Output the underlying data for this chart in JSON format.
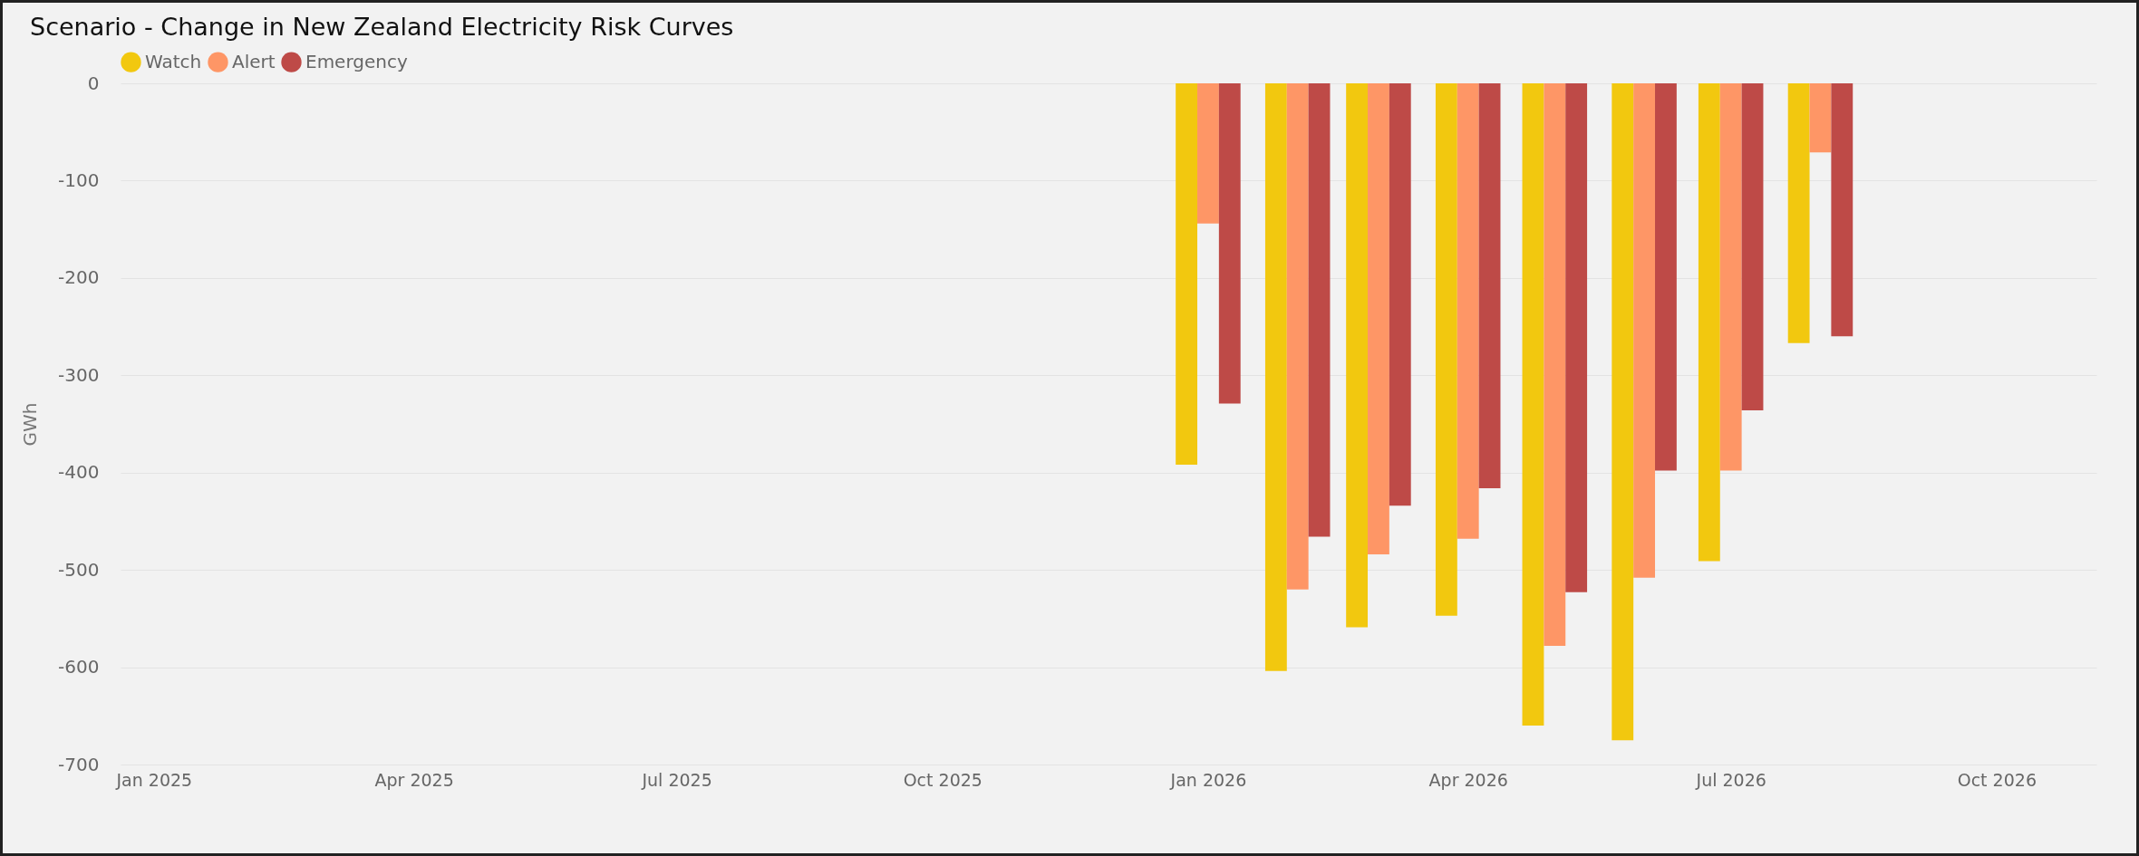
{
  "chart_data": {
    "type": "bar",
    "title": "Scenario - Change in New Zealand Electricity Risk Curves",
    "ylabel": "GWh",
    "x": [
      "2026-01",
      "2026-02",
      "2026-03",
      "2026-04",
      "2026-05",
      "2026-06",
      "2026-07",
      "2026-08"
    ],
    "series": [
      {
        "name": "Watch",
        "color": "#f2c80f",
        "values": [
          -392,
          -604,
          -559,
          -547,
          -660,
          -675,
          -491,
          -267
        ]
      },
      {
        "name": "Alert",
        "color": "#fe9666",
        "values": [
          -144,
          -520,
          -484,
          -468,
          -578,
          -508,
          -398,
          -71
        ]
      },
      {
        "name": "Emergency",
        "color": "#be4a47",
        "values": [
          -329,
          -466,
          -434,
          -416,
          -523,
          -398,
          -336,
          -260
        ]
      }
    ],
    "xlim": [
      "2024-12-22",
      "2026-11-03"
    ],
    "xticks": [
      {
        "value": "2025-01",
        "label": "Jan 2025"
      },
      {
        "value": "2025-04",
        "label": "Apr 2025"
      },
      {
        "value": "2025-07",
        "label": "Jul 2025"
      },
      {
        "value": "2025-10",
        "label": "Oct 2025"
      },
      {
        "value": "2026-01",
        "label": "Jan 2026"
      },
      {
        "value": "2026-04",
        "label": "Apr 2026"
      },
      {
        "value": "2026-07",
        "label": "Jul 2026"
      },
      {
        "value": "2026-10",
        "label": "Oct 2026"
      }
    ],
    "ylim": [
      -700,
      0
    ],
    "yticks": [
      -700,
      -600,
      -500,
      -400,
      -300,
      -200,
      -100,
      0
    ],
    "grid": "y",
    "legend": "top left"
  }
}
